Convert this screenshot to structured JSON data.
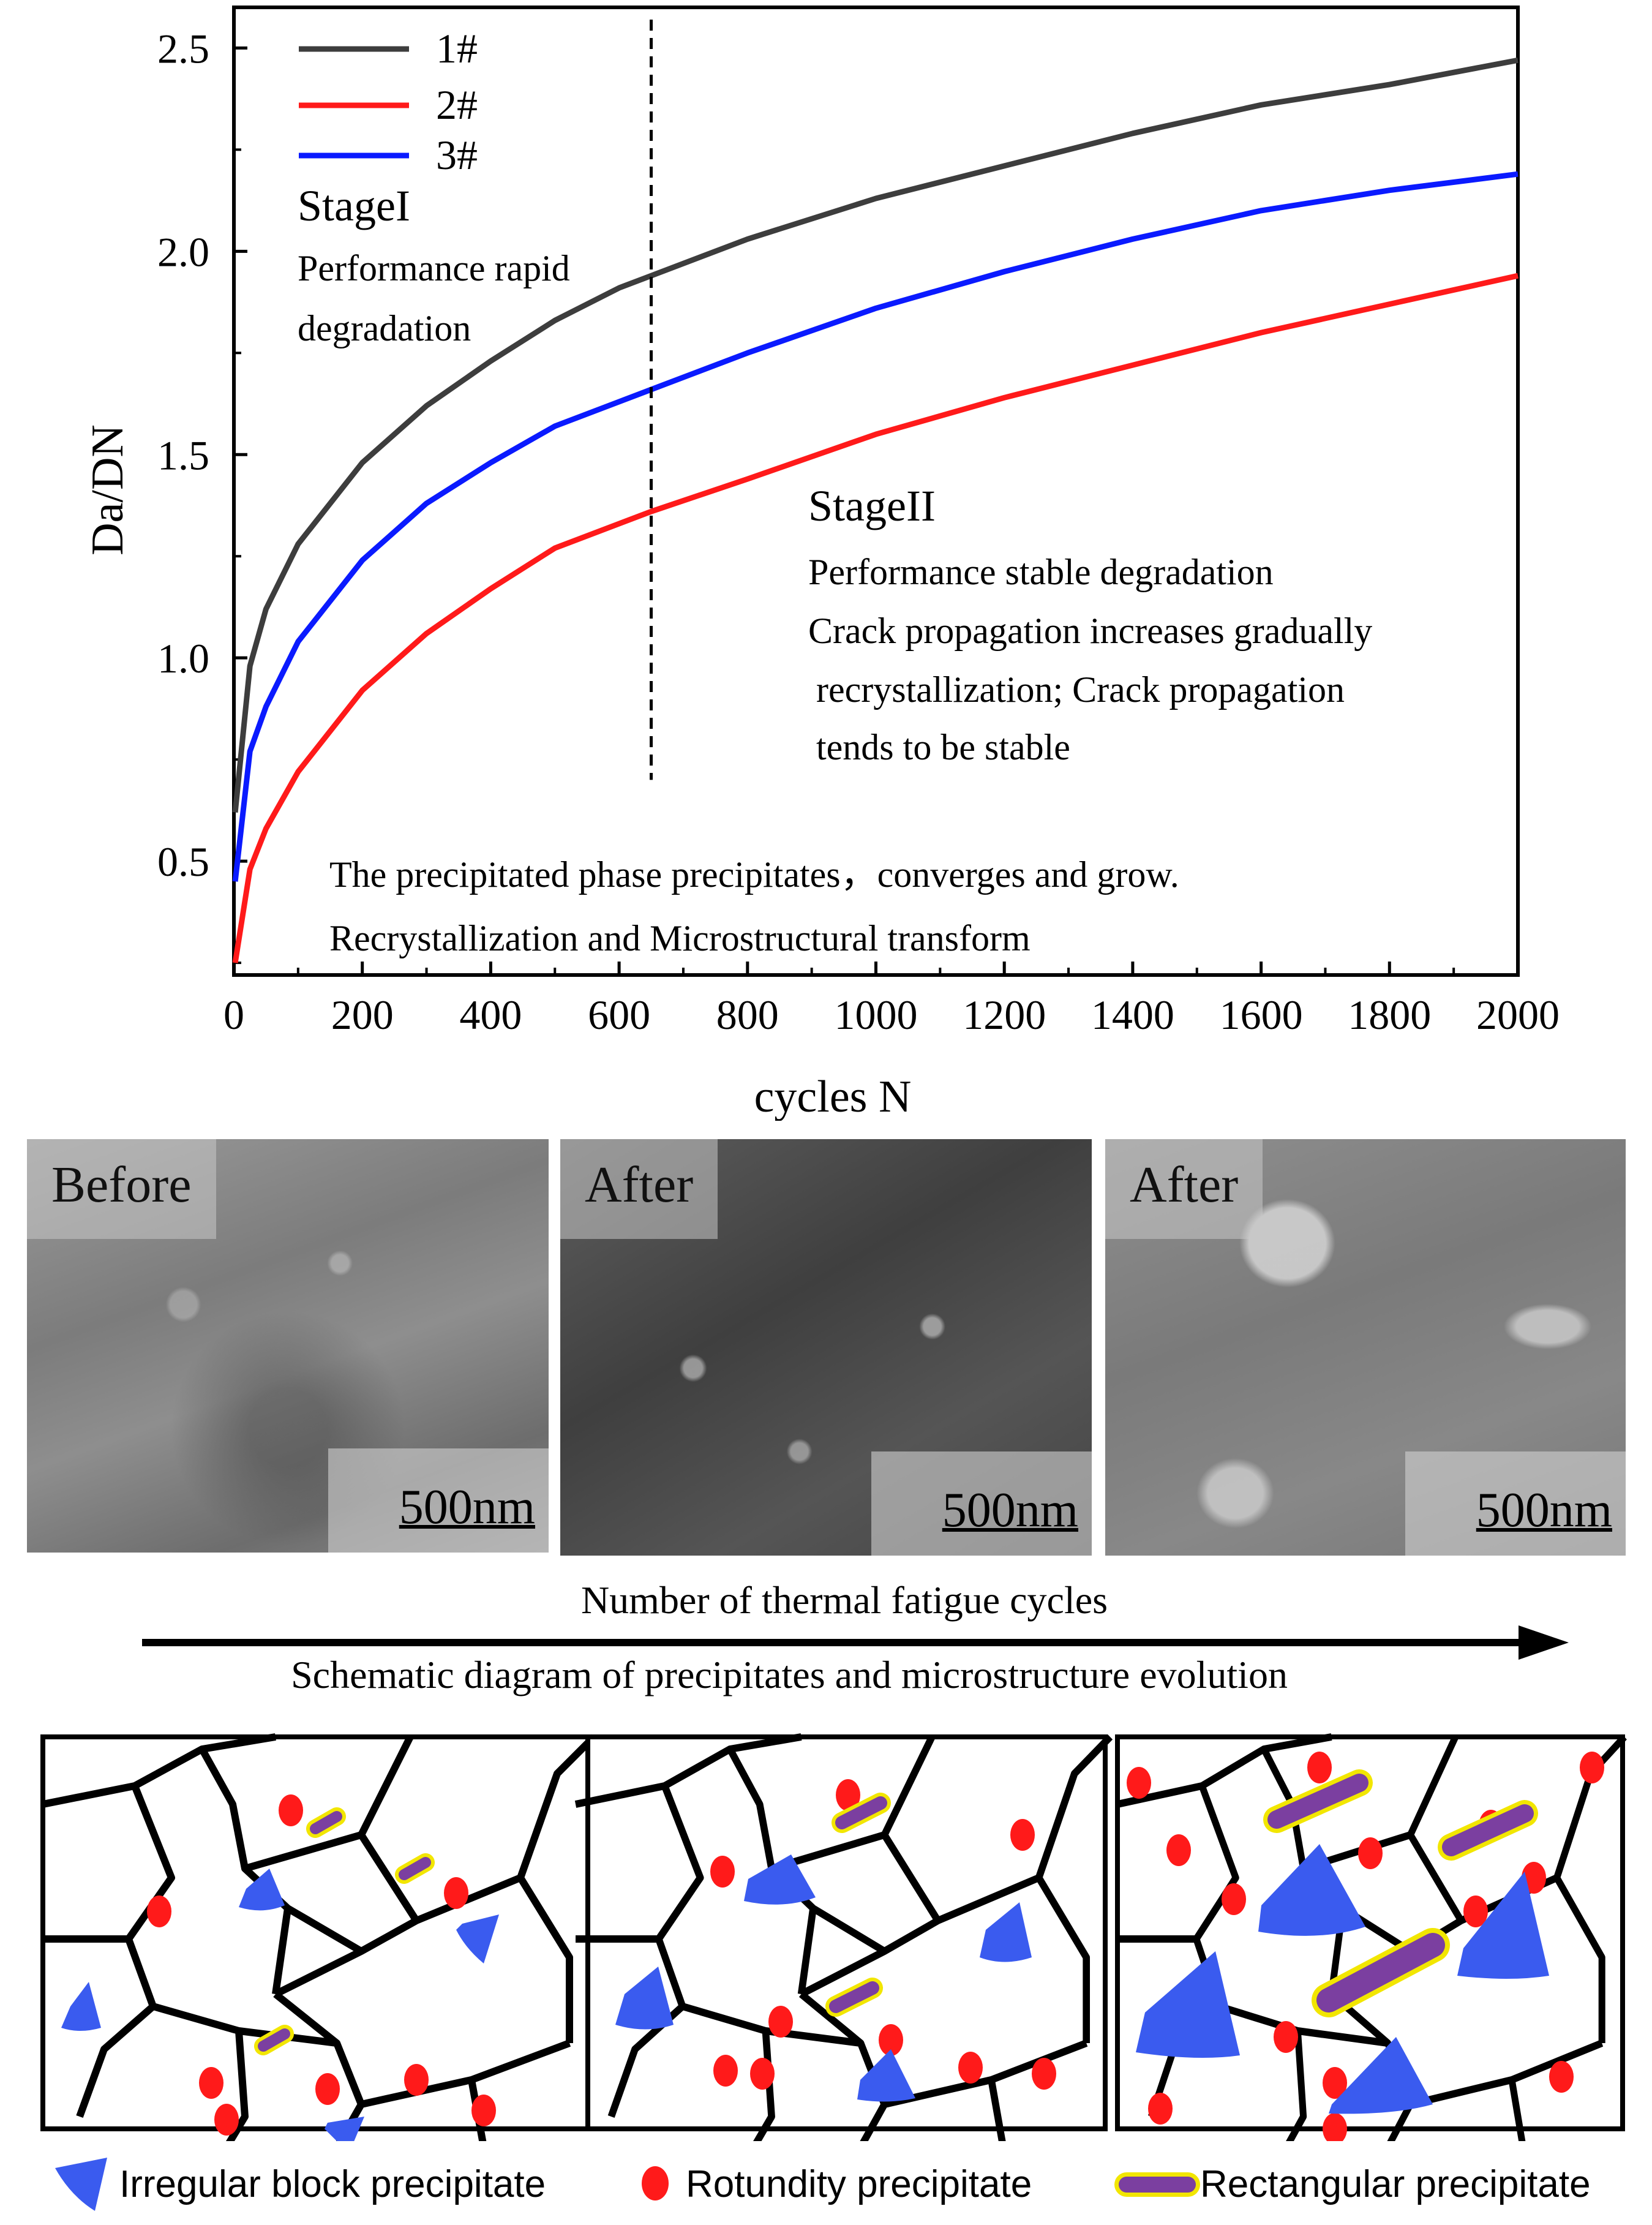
{
  "chart_data": {
    "type": "line",
    "title": "",
    "xlabel": "cycles N",
    "ylabel": "Da/DN",
    "xlim": [
      0,
      2000
    ],
    "ylim": [
      0.22,
      2.6
    ],
    "x_ticks": [
      "0",
      "200",
      "400",
      "600",
      "800",
      "1000",
      "1200",
      "1400",
      "1600",
      "1800",
      "2000"
    ],
    "y_ticks": [
      "0.5",
      "1.0",
      "1.5",
      "2.0",
      "2.5"
    ],
    "x": [
      2,
      25,
      50,
      100,
      200,
      300,
      400,
      500,
      600,
      650,
      800,
      1000,
      1200,
      1400,
      1600,
      1800,
      2000
    ],
    "series": [
      {
        "name": "1#",
        "color": "#3d3d3d",
        "values": [
          0.62,
          0.98,
          1.12,
          1.28,
          1.48,
          1.62,
          1.73,
          1.83,
          1.91,
          1.94,
          2.03,
          2.13,
          2.21,
          2.29,
          2.36,
          2.41,
          2.47
        ]
      },
      {
        "name": "2#",
        "color": "#ff1a1a",
        "values": [
          0.25,
          0.48,
          0.58,
          0.72,
          0.92,
          1.06,
          1.17,
          1.27,
          1.33,
          1.36,
          1.44,
          1.55,
          1.64,
          1.72,
          1.8,
          1.87,
          1.94
        ]
      },
      {
        "name": "3#",
        "color": "#0a1aff",
        "values": [
          0.45,
          0.77,
          0.88,
          1.04,
          1.24,
          1.38,
          1.48,
          1.57,
          1.63,
          1.66,
          1.75,
          1.86,
          1.95,
          2.03,
          2.1,
          2.15,
          2.19
        ]
      }
    ],
    "divider_x": 650,
    "annotations": {
      "stage1_title": "StageI",
      "stage1_line1": "Performance  rapid",
      "stage1_line2": "degradation",
      "stage2_title": "StageII",
      "stage2_line1": "Performance  stable  degradation",
      "stage2_line2": "Crack propagation increases gradually",
      "stage2_line3": "recrystallization; Crack propagation",
      "stage2_line4": "tends to be stable",
      "bottom_line1": "The precipitated phase precipitates，converges and grow.",
      "bottom_line2": "Recrystallization and Microstructural transform"
    }
  },
  "micrographs": [
    {
      "label": "Before",
      "scale": "500nm"
    },
    {
      "label": "After",
      "scale": "500nm"
    },
    {
      "label": "After",
      "scale": "500nm"
    }
  ],
  "arrow_caption": "Number of thermal fatigue cycles",
  "schematic_caption": "Schematic diagram of precipitates and microstructure evolution",
  "legend": {
    "irregular": "Irregular block precipitate",
    "rotundity": "Rotundity precipitate",
    "rectangular": "Rectangular precipitate"
  },
  "colors": {
    "irregular": "#3a5bef",
    "rotundity": "#ff1a1a",
    "rectangular_fill": "#7b3fa0",
    "rectangular_edge": "#f2e600"
  }
}
